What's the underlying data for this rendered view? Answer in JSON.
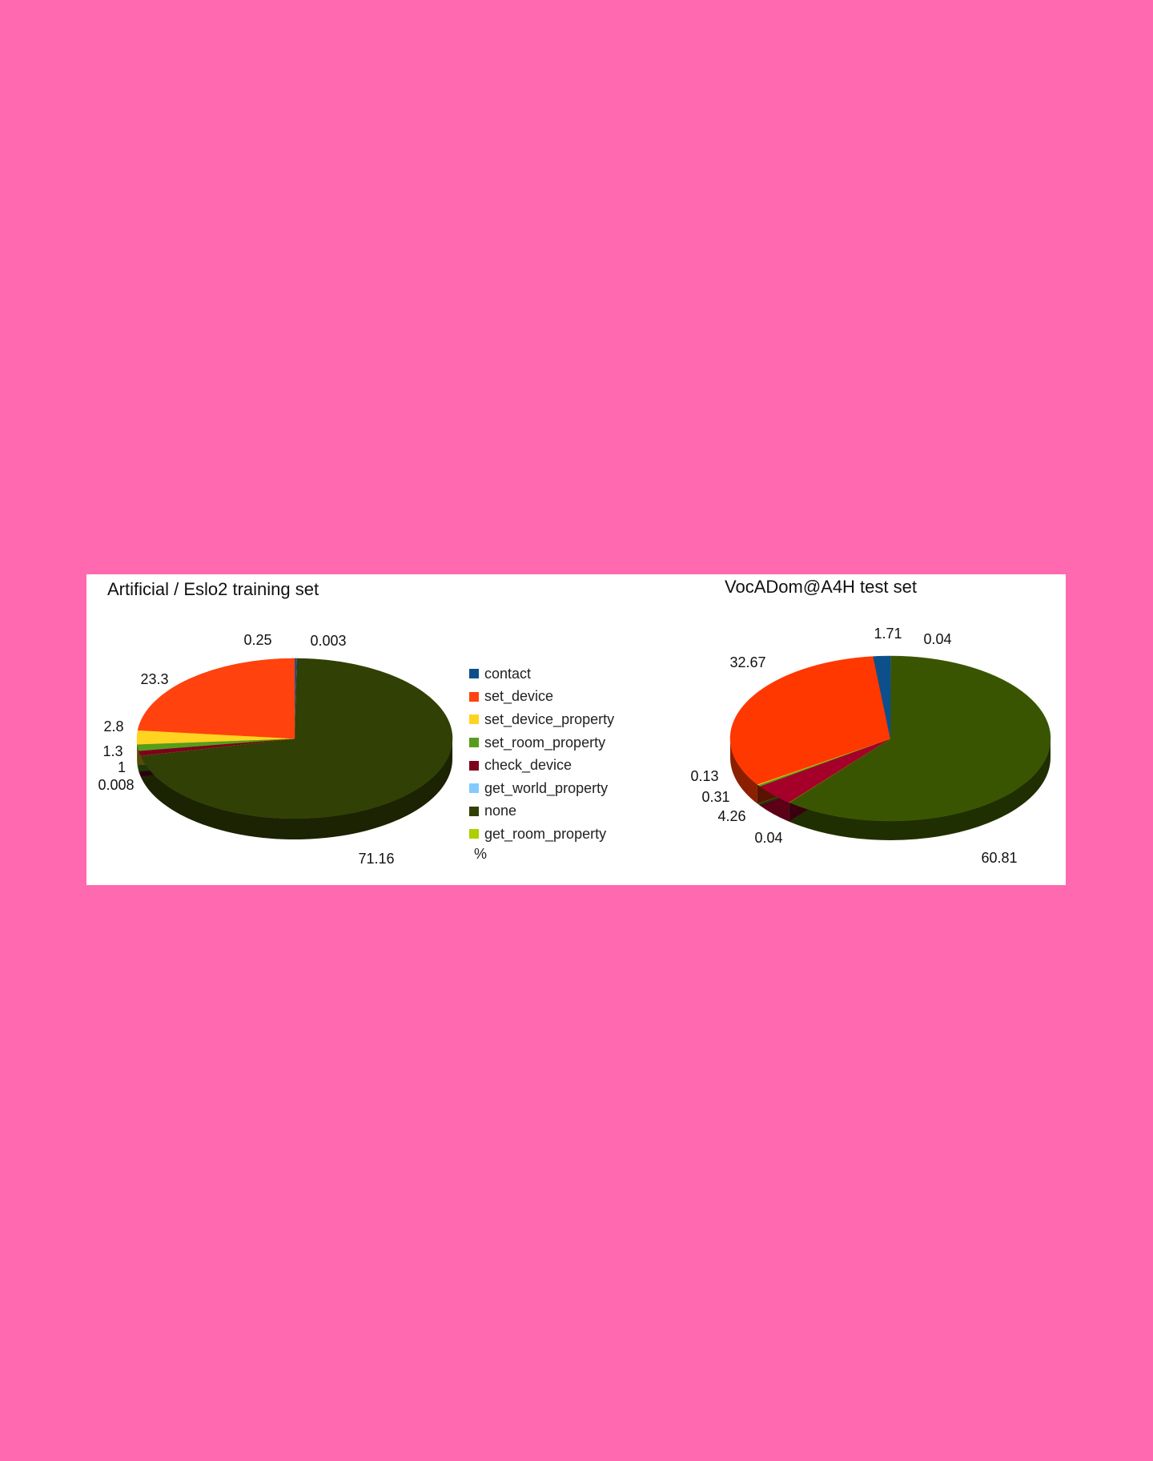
{
  "page": {
    "background": "#ff69b0"
  },
  "legend": {
    "items": [
      {
        "label": "contact",
        "color": "#0d4f8b"
      },
      {
        "label": "set_device",
        "color": "#ff420e"
      },
      {
        "label": "set_device_property",
        "color": "#ffd320"
      },
      {
        "label": "set_room_property",
        "color": "#579d1c"
      },
      {
        "label": "check_device",
        "color": "#7e0021"
      },
      {
        "label": "get_world_property",
        "color": "#83caff"
      },
      {
        "label": "none",
        "color": "#314004"
      },
      {
        "label": "get_room_property",
        "color": "#aecf00"
      }
    ],
    "unit": "%"
  },
  "chart_data": [
    {
      "type": "pie",
      "style": "3d",
      "title": "Artificial / Eslo2 training set",
      "slices": [
        {
          "label": "contact",
          "value": 0.25,
          "color": "#0d4f8b"
        },
        {
          "label": "get_world_property",
          "value": 0.003,
          "color": "#83caff"
        },
        {
          "label": "none",
          "value": 71.16,
          "color": "#314004"
        },
        {
          "label": "get_room_property",
          "value": 0.008,
          "color": "#aecf00"
        },
        {
          "label": "check_device",
          "value": 1,
          "color": "#7e0021"
        },
        {
          "label": "set_room_property",
          "value": 1.3,
          "color": "#579d1c"
        },
        {
          "label": "set_device_property",
          "value": 2.8,
          "color": "#ffd320"
        },
        {
          "label": "set_device",
          "value": 23.3,
          "color": "#ff420e"
        }
      ]
    },
    {
      "type": "pie",
      "style": "3d",
      "title": "VocADom@A4H test set",
      "slices": [
        {
          "label": "get_world_property",
          "value": 0.04,
          "color": "#83caff"
        },
        {
          "label": "none",
          "value": 60.81,
          "color": "#3a5502"
        },
        {
          "label": "get_room_property",
          "value": 0.04,
          "color": "#aecf00"
        },
        {
          "label": "check_device",
          "value": 4.26,
          "color": "#a5002a"
        },
        {
          "label": "set_room_property",
          "value": 0.31,
          "color": "#579d1c"
        },
        {
          "label": "set_device_property",
          "value": 0.13,
          "color": "#ffd320"
        },
        {
          "label": "set_device",
          "value": 32.67,
          "color": "#ff3800"
        },
        {
          "label": "contact",
          "value": 1.71,
          "color": "#0d4f8b"
        }
      ]
    }
  ]
}
